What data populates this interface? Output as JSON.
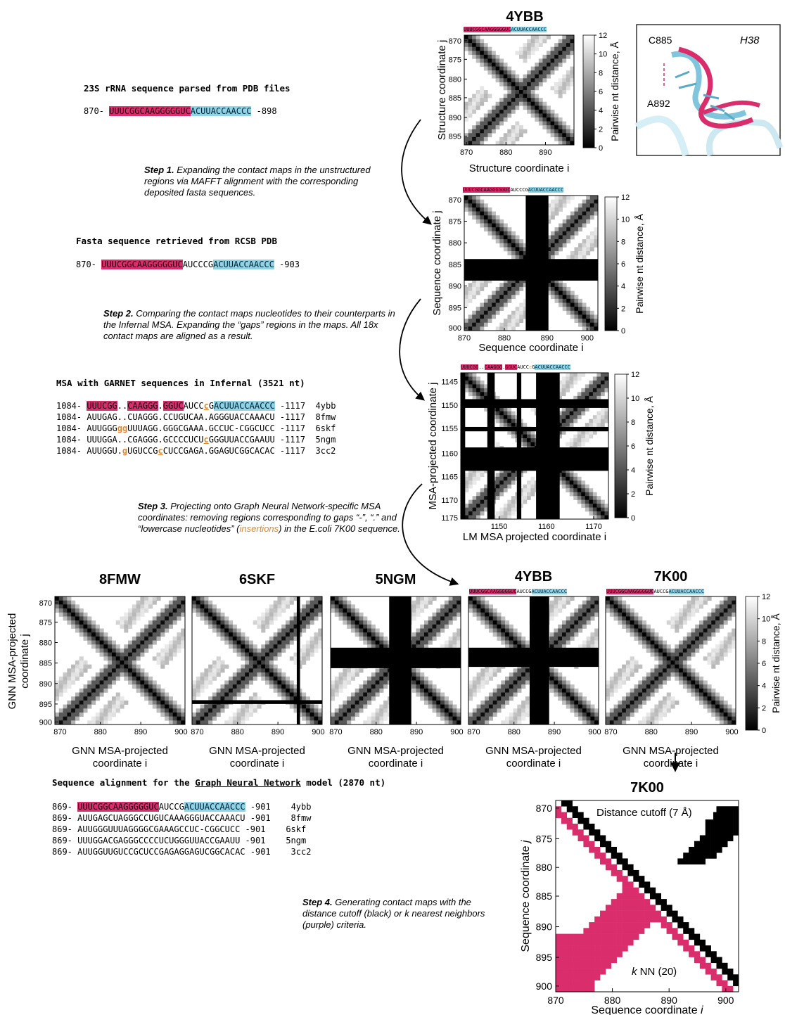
{
  "blocks": {
    "parsed_title": "23S rRNA sequence parsed from PDB files",
    "parsed_start": "870-",
    "parsed_pink": "UUUCGGCAAGGGGGUC",
    "parsed_blue": "ACUUACCAACCC",
    "parsed_end": "-898",
    "step1_bold": "Step 1.",
    "step1_text": "Expanding the contact maps in the unstructured regions via MAFFT alignment with the corresponding deposited fasta sequences.",
    "fasta_title": "Fasta sequence retrieved from RCSB PDB",
    "fasta_start": "870-",
    "fasta_pink": "UUUCGGCAAGGGGGUC",
    "fasta_mid": "AUCCCG",
    "fasta_blue": "ACUUACCAACCC",
    "fasta_end": "-903",
    "step2_bold": "Step 2.",
    "step2_text": "Comparing the contact maps nucleotides to their counterparts in the Infernal MSA. Expanding the “gaps” regions in the maps. All 18x contact maps are aligned as a result.",
    "msa_title": "MSA with GARNET sequences in Infernal (3521 nt)",
    "step3_bold": "Step 3.",
    "step3_text_a": "Projecting onto Graph Neural Network-specific MSA coordinates: removing regions corresponding to gaps “-”, “.” and “lowercase nucleotides” (",
    "step3_insert": "insertions",
    "step3_text_b": ") in the E.coli 7K00 sequence.",
    "gnn_title_a": "Sequence alignment for the ",
    "gnn_title_u": "Graph Neural Network",
    "gnn_title_b": " model (2870 nt)",
    "step4_bold": "Step 4.",
    "step4_text_a": "Generating contact maps with the distance cutoff (black) or ",
    "step4_k": "k",
    "step4_text_b": " nearest neighbors (purple) criteria."
  },
  "msa_rows": [
    {
      "start": "1084-",
      "seq": "UUUCGG..CAAGGG.GGUCAUCCcGACUUACCAACCC",
      "end": "-1117",
      "id": "4ybb"
    },
    {
      "start": "1084-",
      "seq": "AUUGAG..CUAGGG.CCUGUCAA.AGGGUACCAAACU",
      "end": "-1117",
      "id": "8fmw"
    },
    {
      "start": "1084-",
      "seq": "AUUGGGggUUUAGG.GGGCGAAA.GCCUC-CGGCUCC",
      "end": "-1117",
      "id": "6skf"
    },
    {
      "start": "1084-",
      "seq": "UUUGGA..CGAGGG.GCCCCUCUcGGGUUACCGAAUU",
      "end": "-1117",
      "id": "5ngm"
    },
    {
      "start": "1084-",
      "seq": "AUUGGU.gUGUCCGcCUCCGAGA.GGAGUCGGCACAC",
      "end": "-1117",
      "id": "3cc2"
    }
  ],
  "gnn_rows": [
    {
      "start": "869-",
      "seq": "UUUCGGCAAGGGGGUCAUCCGACUUACCAACCC",
      "end": "-901",
      "id": "4ybb"
    },
    {
      "start": "869-",
      "seq": "AUUGAGCUAGGGCCUGUCAAAGGGUACCAAACU",
      "end": "-901",
      "id": "8fmw"
    },
    {
      "start": "869-",
      "seq": "AUUGGGUUUAGGGGCGAAAGCCUC-CGGCUCC",
      "end": "-901",
      "id": "6skf"
    },
    {
      "start": "869-",
      "seq": "UUUGGACGAGGGCCCCUCUGGGUUACCGAAUU",
      "end": "-901",
      "id": "5ngm"
    },
    {
      "start": "869-",
      "seq": "AUUGGUUGUCCGCUCCGAGAGGAGUCGGCACAC",
      "end": "-901",
      "id": "3cc2"
    }
  ],
  "maps": {
    "top": {
      "title": "4YBB",
      "xlabel": "Structure coordinate i",
      "ylabel": "Structure coordinate j",
      "xticks": [
        "870",
        "880",
        "890"
      ],
      "yticks": [
        "870",
        "875",
        "880",
        "885",
        "890",
        "895"
      ],
      "cbar_label": "Pairwise nt distance, Å",
      "cbar_ticks": [
        "12",
        "10",
        "8",
        "6",
        "4",
        "2",
        "0"
      ],
      "bar_pink": "UUUCGGCAAGGGGGUC",
      "bar_blue": "ACUUACCAACCC"
    },
    "seq": {
      "xlabel": "Sequence coordinate i",
      "ylabel": "Sequence coordinate j",
      "xticks": [
        "870",
        "880",
        "890",
        "900"
      ],
      "yticks": [
        "870",
        "875",
        "880",
        "885",
        "890",
        "895",
        "900"
      ],
      "cbar_label": "Pairwise nt distance, Å",
      "cbar_ticks": [
        "12",
        "10",
        "8",
        "6",
        "4",
        "2",
        "0"
      ],
      "bar_pink": "UUUCGGCAAGGGGGUC",
      "bar_mid": "AUCCCG",
      "bar_blue": "ACUUACCAACCC"
    },
    "msa": {
      "xlabel": "LM MSA projected coordinate i",
      "ylabel": "MSA-projected coordinate j",
      "xticks": [
        "1150",
        "1160",
        "1170"
      ],
      "yticks": [
        "1145",
        "1150",
        "1155",
        "1160",
        "1165",
        "1170",
        "1175"
      ],
      "cbar_label": "Pairwise nt distance, Å",
      "cbar_ticks": [
        "12",
        "10",
        "8",
        "6",
        "4",
        "2",
        "0"
      ],
      "bar_p1": "UUUCGG",
      "bar_d1": "..",
      "bar_p2": "CAAGGG",
      "bar_d2": ".",
      "bar_p3": "GGUC",
      "bar_mid": "AUCC",
      "bar_c": "c",
      "bar_g": "G",
      "bar_blue": "ACUUACCAACCC"
    },
    "row": {
      "titles": [
        "8FMW",
        "6SKF",
        "5NGM",
        "4YBB",
        "7K00"
      ],
      "xlabel_a": "GNN MSA-projected",
      "xlabel_b": "coordinate i",
      "ylabel_a": "GNN MSA-projected",
      "ylabel_b": "coordinate j",
      "xticks": [
        "870",
        "880",
        "890",
        "900"
      ],
      "yticks": [
        "870",
        "875",
        "880",
        "885",
        "890",
        "895",
        "900"
      ],
      "cbar_label": "Pairwise nt distance, Å",
      "cbar_ticks": [
        "12",
        "10",
        "8",
        "6",
        "4",
        "2",
        "0"
      ],
      "bar_pink": "UUUCGGCAAGGGGGUC",
      "bar_mid": "AUCCG",
      "bar_blue": "ACUUACCAACCC"
    },
    "final": {
      "title": "7K00",
      "xlabel_a": "Sequence coordinate ",
      "xlabel_i": "i",
      "ylabel_a": "Sequence coordinate ",
      "ylabel_j": "j",
      "xticks": [
        "870",
        "880",
        "890",
        "900"
      ],
      "yticks": [
        "870",
        "875",
        "880",
        "885",
        "890",
        "895",
        "900"
      ],
      "cutoff_label": "Distance cutoff (7 Å)",
      "knn_k": "k",
      "knn_label": " NN (20)"
    }
  },
  "structure": {
    "label_c": "C885",
    "label_a": "A892",
    "label_h": "H38"
  },
  "colors": {
    "pink": "#d92e6b",
    "blue": "#8fd3e6",
    "orange": "#e4872c"
  }
}
